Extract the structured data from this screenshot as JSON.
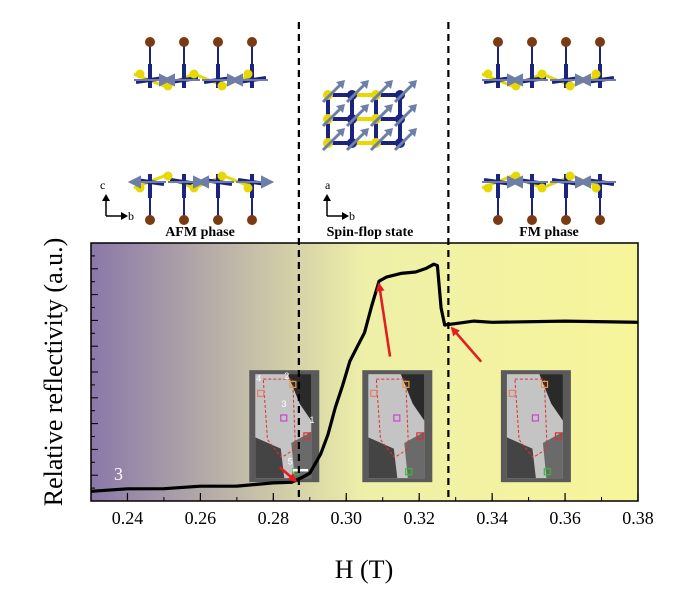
{
  "chart_data": {
    "type": "line",
    "title": "",
    "xlabel": "H (T)",
    "ylabel": "Relative reflectivity (a.u.)",
    "xlim": [
      0.23,
      0.38
    ],
    "ylim": [
      0,
      1
    ],
    "x_ticks": [
      0.24,
      0.26,
      0.28,
      0.3,
      0.32,
      0.34,
      0.36,
      0.38
    ],
    "x_tick_labels": [
      "0.24",
      "0.26",
      "0.28",
      "0.30",
      "0.32",
      "0.34",
      "0.36",
      "0.38"
    ],
    "grid": false,
    "panel_number": "3",
    "phase_labels": [
      "AFM phase",
      "Spin-flop state",
      "FM phase"
    ],
    "phase_boundaries": [
      0.287,
      0.328
    ],
    "background_gradient": {
      "start_color": "#8a78a8",
      "mid_color": "#eef0a8",
      "end_color": "#f7f59a"
    },
    "series": [
      {
        "color": "#000000",
        "points": [
          [
            0.23,
            0.04
          ],
          [
            0.24,
            0.045
          ],
          [
            0.25,
            0.05
          ],
          [
            0.26,
            0.055
          ],
          [
            0.27,
            0.06
          ],
          [
            0.28,
            0.068
          ],
          [
            0.285,
            0.075
          ],
          [
            0.288,
            0.09
          ],
          [
            0.29,
            0.11
          ],
          [
            0.293,
            0.18
          ],
          [
            0.295,
            0.26
          ],
          [
            0.297,
            0.36
          ],
          [
            0.299,
            0.45
          ],
          [
            0.301,
            0.54
          ],
          [
            0.303,
            0.6
          ],
          [
            0.305,
            0.65
          ],
          [
            0.307,
            0.76
          ],
          [
            0.309,
            0.85
          ],
          [
            0.311,
            0.87
          ],
          [
            0.315,
            0.88
          ],
          [
            0.319,
            0.89
          ],
          [
            0.322,
            0.9
          ],
          [
            0.324,
            0.92
          ],
          [
            0.325,
            0.91
          ],
          [
            0.326,
            0.75
          ],
          [
            0.327,
            0.68
          ],
          [
            0.33,
            0.69
          ],
          [
            0.335,
            0.695
          ],
          [
            0.34,
            0.695
          ],
          [
            0.36,
            0.695
          ],
          [
            0.38,
            0.695
          ]
        ]
      }
    ],
    "insets": [
      {
        "x": 0.283,
        "y": 0.29,
        "labels": [
          "1",
          "2",
          "3",
          "4",
          "5"
        ]
      },
      {
        "x": 0.314,
        "y": 0.29,
        "labels": []
      },
      {
        "x": 0.352,
        "y": 0.29,
        "labels": []
      }
    ],
    "arrow_color": "#e02020",
    "inset_square_colors": [
      "#d83030",
      "#e0a040",
      "#cc44cc",
      "#e08070",
      "#30c030"
    ],
    "crystal_colors": {
      "blue": "#1a237e",
      "yellow": "#e6d800",
      "brown": "#7a3a12",
      "spin": "#6d7fa8"
    },
    "coordinate_labels": [
      {
        "vertical": "c",
        "horizontal": "b"
      },
      {
        "vertical": "a",
        "horizontal": "b"
      }
    ]
  }
}
